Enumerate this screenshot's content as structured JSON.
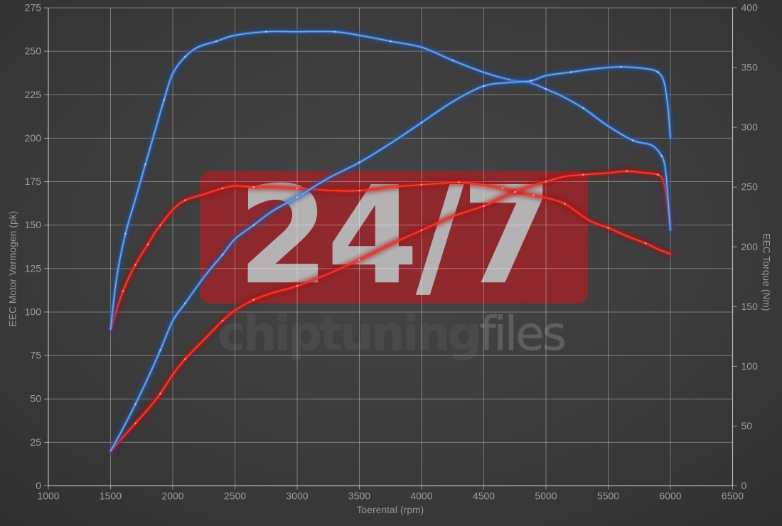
{
  "watermark": {
    "badge_text": "24/7",
    "brand_primary": "chiptuning",
    "brand_secondary": "files",
    "badge_color": "#c1181e",
    "badge_text_color": "#b4b2b3"
  },
  "axes": {
    "x": {
      "title": "Toerental (rpm)"
    },
    "y_left": {
      "title": "EEC Motor Vermogen (pk)"
    },
    "y_right": {
      "title": "EEC Torque (Nm)"
    }
  },
  "style": {
    "background_center": "#464646",
    "background_edge": "#2d2d2d",
    "grid_color": "rgba(255,255,255,0.34)",
    "axis_color": "rgba(255,255,255,0.5)",
    "tick_label_color": "#9b9ea1",
    "blue_base": "#3f7fd4",
    "red_base": "#e62019"
  },
  "chart_data": {
    "type": "line",
    "title": "",
    "xlabel": "Toerental (rpm)",
    "ylabel_left": "EEC Motor Vermogen (pk)",
    "ylabel_right": "EEC Torque (Nm)",
    "grid": true,
    "legend": "none",
    "x": {
      "min": 1000,
      "max": 6500,
      "ticks": [
        1000,
        1500,
        2000,
        2500,
        3000,
        3500,
        4000,
        4500,
        5000,
        5500,
        6000,
        6500
      ]
    },
    "y_left": {
      "min": 0,
      "max": 275,
      "ticks": [
        0,
        25,
        50,
        75,
        100,
        125,
        150,
        175,
        200,
        225,
        250,
        275
      ]
    },
    "y_right": {
      "min": 0,
      "max": 400,
      "ticks": [
        0,
        50,
        100,
        150,
        200,
        250,
        300,
        350,
        400
      ]
    },
    "series": [
      {
        "id": "torque-original",
        "axis": "right",
        "unit": "Nm",
        "color_base": "#e62019",
        "color_glow": "#a31010",
        "color_core": "#ff453a",
        "points": [
          [
            1500,
            131
          ],
          [
            1550,
            148
          ],
          [
            1600,
            163
          ],
          [
            1650,
            175
          ],
          [
            1700,
            185
          ],
          [
            1750,
            194
          ],
          [
            1800,
            202
          ],
          [
            1850,
            211
          ],
          [
            1900,
            218
          ],
          [
            2000,
            231
          ],
          [
            2100,
            239
          ],
          [
            2250,
            244
          ],
          [
            2400,
            249
          ],
          [
            2500,
            251
          ],
          [
            2650,
            250
          ],
          [
            2800,
            250
          ],
          [
            3000,
            249
          ],
          [
            3300,
            247
          ],
          [
            3500,
            247
          ],
          [
            3750,
            250
          ],
          [
            4000,
            252
          ],
          [
            4150,
            253
          ],
          [
            4300,
            254
          ],
          [
            4500,
            252
          ],
          [
            4650,
            249
          ],
          [
            4750,
            246
          ],
          [
            4900,
            243
          ],
          [
            5000,
            241
          ],
          [
            5150,
            236
          ],
          [
            5350,
            222
          ],
          [
            5500,
            216
          ],
          [
            5650,
            209
          ],
          [
            5800,
            203
          ],
          [
            5900,
            198
          ],
          [
            6000,
            194
          ]
        ]
      },
      {
        "id": "power-original",
        "axis": "left",
        "unit": "pk",
        "color_base": "#e62019",
        "color_glow": "#a31010",
        "color_core": "#ff453a",
        "points": [
          [
            1500,
            20
          ],
          [
            1600,
            28
          ],
          [
            1700,
            36
          ],
          [
            1800,
            44
          ],
          [
            1900,
            53
          ],
          [
            2000,
            64
          ],
          [
            2100,
            73
          ],
          [
            2250,
            84
          ],
          [
            2400,
            95
          ],
          [
            2500,
            101
          ],
          [
            2650,
            107
          ],
          [
            2800,
            111
          ],
          [
            3000,
            115
          ],
          [
            3250,
            122
          ],
          [
            3500,
            130
          ],
          [
            3750,
            139
          ],
          [
            4000,
            147
          ],
          [
            4250,
            155
          ],
          [
            4500,
            161
          ],
          [
            4650,
            166
          ],
          [
            4750,
            169
          ],
          [
            4900,
            173
          ],
          [
            5000,
            175
          ],
          [
            5150,
            178
          ],
          [
            5300,
            179
          ],
          [
            5500,
            180
          ],
          [
            5650,
            181
          ],
          [
            5800,
            180
          ],
          [
            5900,
            179
          ],
          [
            5940,
            176
          ],
          [
            5970,
            166
          ],
          [
            6000,
            150
          ]
        ]
      },
      {
        "id": "torque-tuned",
        "axis": "right",
        "unit": "Nm",
        "color_base": "#3f7fd4",
        "color_glow": "#1c4d9e",
        "color_core": "#7ab2f2",
        "points": [
          [
            1500,
            131
          ],
          [
            1550,
            175
          ],
          [
            1620,
            211
          ],
          [
            1700,
            240
          ],
          [
            1780,
            269
          ],
          [
            1860,
            298
          ],
          [
            1930,
            323
          ],
          [
            2000,
            345
          ],
          [
            2100,
            359
          ],
          [
            2200,
            367
          ],
          [
            2350,
            372
          ],
          [
            2500,
            377
          ],
          [
            2750,
            380
          ],
          [
            3000,
            380
          ],
          [
            3300,
            380
          ],
          [
            3500,
            377
          ],
          [
            3750,
            372
          ],
          [
            4000,
            367
          ],
          [
            4250,
            356
          ],
          [
            4500,
            346
          ],
          [
            4700,
            340
          ],
          [
            4880,
            337
          ],
          [
            5000,
            332
          ],
          [
            5130,
            326
          ],
          [
            5300,
            316
          ],
          [
            5500,
            301
          ],
          [
            5700,
            289
          ],
          [
            5850,
            285
          ],
          [
            5930,
            276
          ],
          [
            5960,
            265
          ],
          [
            5980,
            241
          ],
          [
            6000,
            214
          ]
        ]
      },
      {
        "id": "power-tuned",
        "axis": "left",
        "unit": "pk",
        "color_base": "#3f7fd4",
        "color_glow": "#1c4d9e",
        "color_core": "#7ab2f2",
        "points": [
          [
            1500,
            20
          ],
          [
            1600,
            33
          ],
          [
            1700,
            47
          ],
          [
            1800,
            62
          ],
          [
            1900,
            78
          ],
          [
            2000,
            95
          ],
          [
            2100,
            105
          ],
          [
            2250,
            120
          ],
          [
            2400,
            133
          ],
          [
            2500,
            142
          ],
          [
            2650,
            150
          ],
          [
            2800,
            158
          ],
          [
            3000,
            166
          ],
          [
            3250,
            177
          ],
          [
            3500,
            186
          ],
          [
            3750,
            197
          ],
          [
            4000,
            209
          ],
          [
            4250,
            221
          ],
          [
            4500,
            230
          ],
          [
            4700,
            232
          ],
          [
            4880,
            233
          ],
          [
            5000,
            236
          ],
          [
            5200,
            238
          ],
          [
            5400,
            240
          ],
          [
            5600,
            241
          ],
          [
            5800,
            240
          ],
          [
            5900,
            238
          ],
          [
            5950,
            232
          ],
          [
            5980,
            218
          ],
          [
            6000,
            200
          ]
        ]
      }
    ]
  }
}
